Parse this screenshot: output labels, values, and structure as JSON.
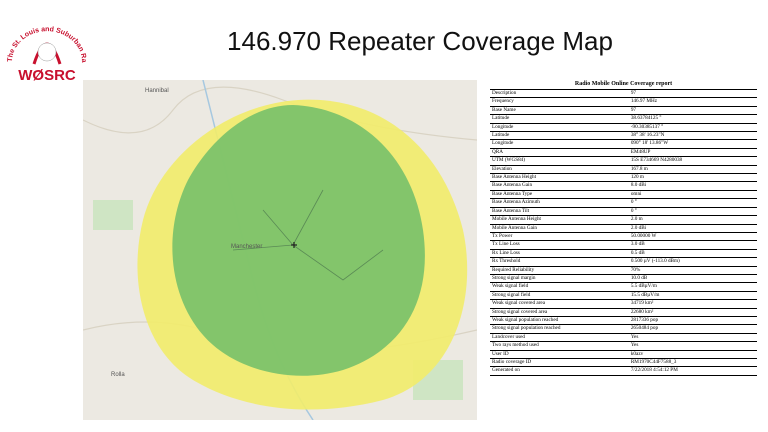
{
  "logo": {
    "ring_text": "The St. Louis and Suburban Radio Club",
    "callsign": "WØSRC"
  },
  "title": "146.970 Repeater Coverage Map",
  "map": {
    "labels": [
      "Hannibal",
      "Manchester",
      "Rolla"
    ]
  },
  "report": {
    "title": "Radio Mobile Online Coverage report",
    "rows": [
      [
        "Description",
        "97"
      ],
      [
        "Frequency",
        "146.97 MHz"
      ],
      [
        "Base Name",
        "97"
      ],
      [
        "Latitude",
        "38.63784125 °"
      ],
      [
        "Longitude",
        "-90.30385137 °"
      ],
      [
        "Latitude",
        "38° 38' 16.23\"N"
      ],
      [
        "Longitude",
        "090° 18' 13.86\"W"
      ],
      [
        "QRA",
        "EM48UP"
      ],
      [
        "UTM (WGS84)",
        "15S E734669 N4280038"
      ],
      [
        "Elevation",
        "167.8 m"
      ],
      [
        "Base Antenna Height",
        "120 m"
      ],
      [
        "Base Antenna Gain",
        "8.0 dBi"
      ],
      [
        "Base Antenna Type",
        "omni"
      ],
      [
        "Base Antenna Azimuth",
        "0 °"
      ],
      [
        "Base Antenna Tilt",
        "0 °"
      ],
      [
        "Mobile Antenna Height",
        "2.0 m"
      ],
      [
        "Mobile Antenna Gain",
        "2.0 dBi"
      ],
      [
        "Tx Power",
        "50.00000 W"
      ],
      [
        "Tx Line Loss",
        "3.0 dB"
      ],
      [
        "Rx Line Loss",
        "0.5 dB"
      ],
      [
        "Rx Threshold",
        "0.500 µV (-113.0 dBm)"
      ],
      [
        "Required Reliability",
        "70%"
      ],
      [
        "Strong signal margin",
        "10.0 dB"
      ],
      [
        "Weak signal field",
        "5.5 dBµV/m"
      ],
      [
        "Strong signal field",
        "15.5 dBµV/m"
      ],
      [
        "Weak signal covered area",
        "34719 km²"
      ],
      [
        "Strong signal covered area",
        "22680 km²"
      ],
      [
        "Weak signal population reached",
        "2817336 pop"
      ],
      [
        "Strong signal population reached",
        "2650484 pop"
      ],
      [
        "Landcover used",
        "Yes"
      ],
      [
        "Two rays method used",
        "Yes"
      ],
      [
        "User ID",
        "k0azv"
      ],
      [
        "Radio coverage ID",
        "RM1970C44F7588_3"
      ],
      [
        "Generated on",
        "7/22/2018 4:54:12 PM"
      ]
    ]
  }
}
